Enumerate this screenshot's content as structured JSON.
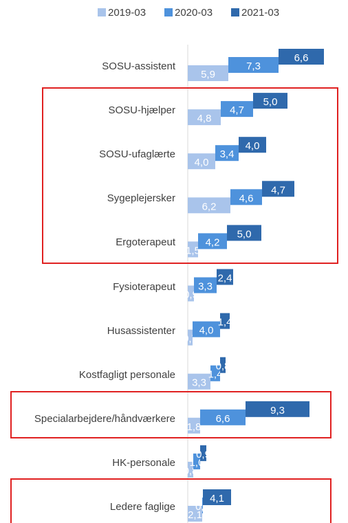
{
  "chart_data": {
    "type": "bar",
    "orientation": "horizontal",
    "stacked": true,
    "categories": [
      "SOSU-assistent",
      "SOSU-hjælper",
      "SOSU-ufaglærte",
      "Sygeplejersker",
      "Ergoterapeut",
      "Fysioterapeut",
      "Husassistenter",
      "Kostfagligt personale",
      "Specialarbejdere/håndværkere",
      "HK-personale",
      "Ledere faglige"
    ],
    "series": [
      {
        "name": "2019-03",
        "color": "#a9c4eb",
        "values": [
          5.9,
          4.8,
          4.0,
          6.2,
          1.5,
          0.9,
          0.7,
          3.3,
          1.8,
          0.8,
          2.1
        ],
        "value_labels": [
          "5,9",
          "4,8",
          "4,0",
          "6,2",
          "1,5",
          "0,9",
          "0,7",
          "3,3",
          "1,8",
          "0,8",
          "2,1"
        ]
      },
      {
        "name": "2020-03",
        "color": "#4e92dc",
        "values": [
          7.3,
          4.7,
          3.4,
          4.6,
          4.2,
          3.3,
          4.0,
          1.4,
          6.6,
          1.0,
          0.1
        ],
        "value_labels": [
          "7,3",
          "4,7",
          "3,4",
          "4,6",
          "4,2",
          "3,3",
          "4,0",
          "1,4",
          "6,6",
          "1,0",
          "0,1"
        ]
      },
      {
        "name": "2021-03",
        "color": "#2f69ac",
        "values": [
          6.6,
          5.0,
          4.0,
          4.7,
          5.0,
          2.4,
          1.4,
          0.8,
          9.3,
          0.9,
          4.1
        ],
        "value_labels": [
          "6,6",
          "5,0",
          "4,0",
          "4,7",
          "5,0",
          "2,4",
          "1,4",
          "0,8",
          "9,3",
          "0,9",
          "4,1"
        ]
      }
    ],
    "xlim": [
      0,
      23
    ]
  }
}
